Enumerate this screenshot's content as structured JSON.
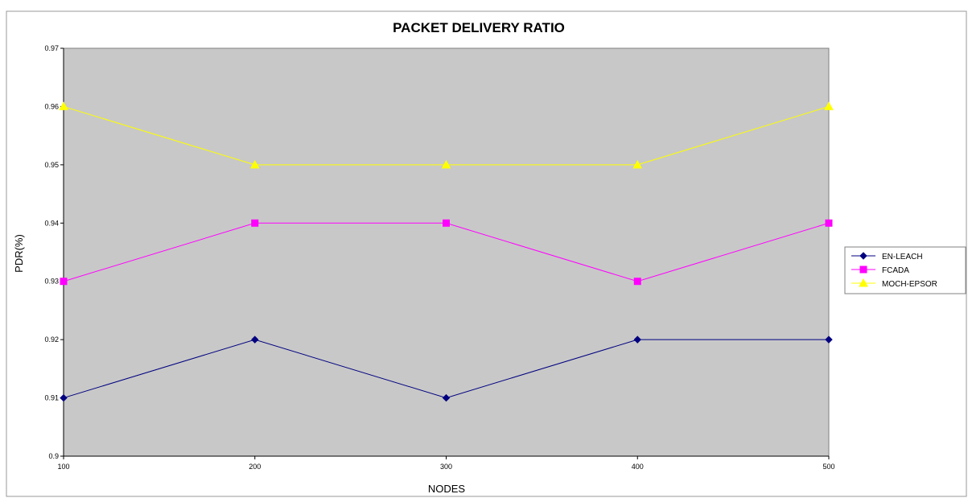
{
  "chart_data": {
    "type": "line",
    "title": "PACKET DELIVERY RATIO",
    "xlabel": "NODES",
    "ylabel": "PDR(%)",
    "x": [
      100,
      200,
      300,
      400,
      500
    ],
    "x_tick_labels": [
      "100",
      "200",
      "300",
      "400",
      "500"
    ],
    "ylim": [
      0.9,
      0.97
    ],
    "y_ticks": [
      0.9,
      0.91,
      0.92,
      0.93,
      0.94,
      0.95,
      0.96,
      0.97
    ],
    "y_tick_labels": [
      "0.9",
      "0.91",
      "0.92",
      "0.93",
      "0.94",
      "0.95",
      "0.96",
      "0.97"
    ],
    "grid": false,
    "legend_position": "right",
    "plot_background": "#c8c8c8",
    "series": [
      {
        "name": "EN-LEACH",
        "values": [
          0.91,
          0.92,
          0.91,
          0.92,
          0.92
        ],
        "color": "#000080",
        "marker": "diamond"
      },
      {
        "name": "FCADA",
        "values": [
          0.93,
          0.94,
          0.94,
          0.93,
          0.94
        ],
        "color": "#ff00ff",
        "marker": "square"
      },
      {
        "name": "MOCH-EPSOR",
        "values": [
          0.96,
          0.95,
          0.95,
          0.95,
          0.96
        ],
        "color": "#ffff00",
        "marker": "triangle"
      }
    ]
  }
}
